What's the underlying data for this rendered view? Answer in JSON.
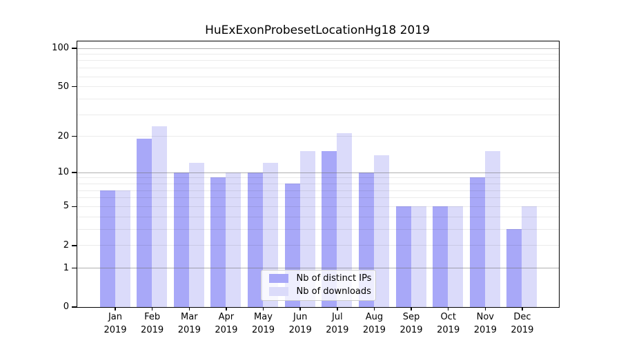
{
  "figure": {
    "background": "#ffffff"
  },
  "chart_data": {
    "type": "bar",
    "title": "HuExExonProbesetLocationHg18 2019",
    "year": "2019",
    "categories": [
      "Jan",
      "Feb",
      "Mar",
      "Apr",
      "May",
      "Jun",
      "Jul",
      "Aug",
      "Sep",
      "Oct",
      "Nov",
      "Dec"
    ],
    "series": [
      {
        "name": "Nb of distinct IPs",
        "color": "#a8a8f8",
        "values": [
          7,
          19,
          10,
          9,
          10,
          8,
          15,
          10,
          5,
          5,
          9,
          3
        ]
      },
      {
        "name": "Nb of downloads",
        "color": "#dbdbfa",
        "values": [
          7,
          24,
          12,
          10,
          12,
          15,
          21,
          14,
          5,
          5,
          15,
          5
        ]
      }
    ],
    "yticks": [
      100,
      50,
      20,
      10,
      5,
      2,
      1,
      0
    ],
    "ylim": [
      0,
      112
    ],
    "yscale": "log10(1+y)",
    "grid": "horizontal minor log gridlines at 2-9 and 20-90; darker gray lines at 1, 10, 100",
    "legend_position": "inside-bottom-center",
    "colors": {
      "grid_minor": "rgba(0,0,0,0.08)",
      "grid_major": "rgba(110,110,110,0.55)",
      "axis": "#000000",
      "legend_border": "#cccccc",
      "legend_background": "rgba(255,255,255,0.8)"
    }
  }
}
